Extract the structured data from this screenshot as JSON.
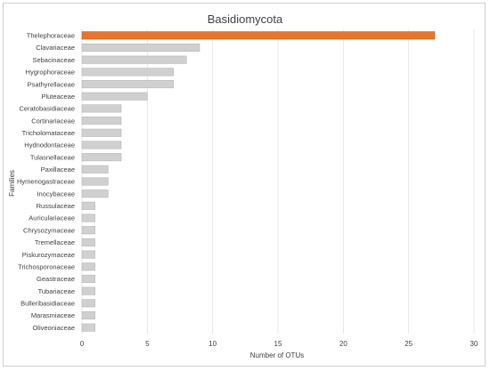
{
  "chart_data": {
    "type": "bar",
    "orientation": "horizontal",
    "title": "Basidiomycota",
    "xlabel": "Number of OTUs",
    "ylabel": "Families",
    "xlim": [
      0,
      30
    ],
    "xticks": [
      0,
      5,
      10,
      15,
      20,
      25,
      30
    ],
    "grid": true,
    "legend": "none",
    "categories": [
      "Thelephoraceae",
      "Clavariaceae",
      "Sebacinaceae",
      "Hygrophoraceae",
      "Psathyrellaceae",
      "Pluteaceae",
      "Ceratobasidiaceae",
      "Cortinariaceae",
      "Tricholomataceae",
      "Hydnodontaceae",
      "Tulasnellaceae",
      "Paxillaceae",
      "Hymenogastraceae",
      "Inocybaceae",
      "Russulaceae",
      "Auriculariaceae",
      "Chrysozymaceae",
      "Tremellaceae",
      "Piskurozymaceae",
      "Trichosporonaceae",
      "Geastraceae",
      "Tubariaceae",
      "Bulleribasidiaceae",
      "Marasmiaceae",
      "Oliveoniaceae"
    ],
    "values": [
      27,
      9,
      8,
      7,
      7,
      5,
      3,
      3,
      3,
      3,
      3,
      2,
      2,
      2,
      1,
      1,
      1,
      1,
      1,
      1,
      1,
      1,
      1,
      1,
      1
    ],
    "colors": {
      "highlight": "#E8752E",
      "default": "#D0D0D0",
      "highlight_border": "#C65A1A",
      "default_border": "#B8B8B8"
    }
  }
}
